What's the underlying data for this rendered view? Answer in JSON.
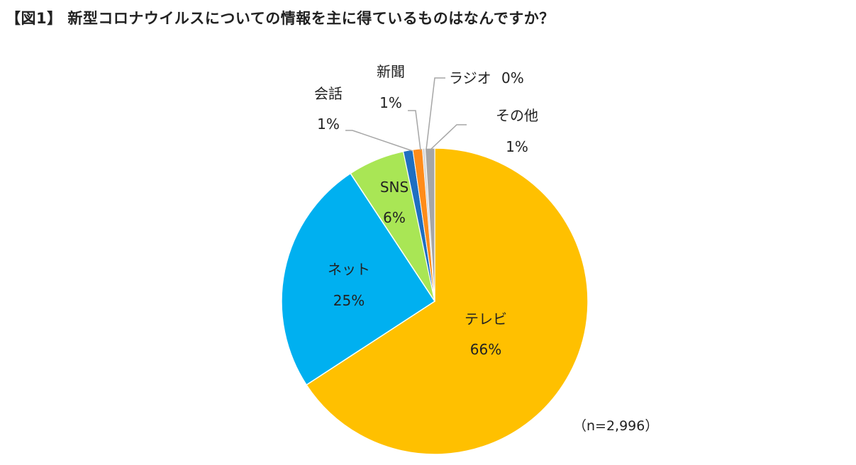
{
  "title": "【図1】 新型コロナウイルスについての情報を主に得ているものはなんですか？",
  "note": "（n=2,996）",
  "chart_data": {
    "type": "pie",
    "title": "【図1】 新型コロナウイルスについての情報を主に得ているものはなんですか？",
    "sample_size": "（n=2,996）",
    "start_angle_deg": 0,
    "direction": "clockwise",
    "slices": [
      {
        "name": "テレビ",
        "value": 66,
        "label": "66%",
        "color": "#FFC000"
      },
      {
        "name": "ネット",
        "value": 25,
        "label": "25%",
        "color": "#00B0F0"
      },
      {
        "name": "SNS",
        "value": 6,
        "label": "6%",
        "color": "#A9E655"
      },
      {
        "name": "会話",
        "value": 1,
        "label": "1%",
        "color": "#1F6FC1"
      },
      {
        "name": "新聞",
        "value": 1,
        "label": "1%",
        "color": "#FF8C1A"
      },
      {
        "name": "ラジオ",
        "value": 0,
        "label": "0%",
        "color": "#D9D9D9"
      },
      {
        "name": "その他",
        "value": 1,
        "label": "1%",
        "color": "#A6A6A6"
      }
    ]
  }
}
